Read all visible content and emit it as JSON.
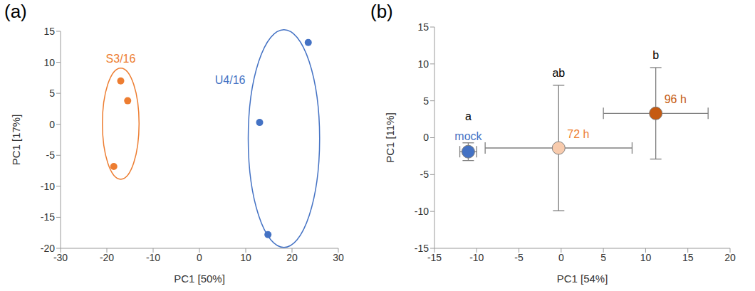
{
  "chart_data": [
    {
      "panel": "(a)",
      "type": "scatter",
      "x_label": "PC1 [50%]",
      "y_label": "PC1 [17%]",
      "xlim": [
        -30,
        30
      ],
      "xticks": [
        -30,
        -20,
        -10,
        0,
        10,
        20,
        30
      ],
      "ylim": [
        -20,
        15
      ],
      "yticks": [
        -20,
        -15,
        -10,
        -5,
        0,
        5,
        10,
        15
      ],
      "grid": false,
      "series": [
        {
          "name": "S3/16",
          "color": "#ed7d31",
          "marker": "circle",
          "x": [
            -17,
            -15.5,
            -18.5
          ],
          "values": [
            7,
            3.8,
            -6.8
          ]
        },
        {
          "name": "U4/16",
          "color": "#4472c4",
          "marker": "circle",
          "x": [
            23.5,
            13,
            14.8
          ],
          "values": [
            13.2,
            0.3,
            -17.8
          ]
        }
      ]
    },
    {
      "panel": "(b)",
      "type": "scatter",
      "x_label": "PC1 [54%]",
      "y_label": "PC1 [11%]",
      "xlim": [
        -15,
        20
      ],
      "xticks": [
        -15,
        -10,
        -5,
        0,
        5,
        10,
        15,
        20
      ],
      "ylim": [
        -15,
        15
      ],
      "yticks": [
        -15,
        -10,
        -5,
        0,
        5,
        10,
        15
      ],
      "grid": false,
      "series": [
        {
          "name": "mock",
          "color": "#4472c4",
          "marker": "circle",
          "letter": "a",
          "x": [
            -11
          ],
          "values": [
            -1.9
          ],
          "xerr": [
            1.0
          ],
          "yerr": [
            1.2
          ]
        },
        {
          "name": "72 h",
          "color": "#f8cbad",
          "marker": "circle",
          "letter": "ab",
          "x": [
            -0.3
          ],
          "values": [
            -1.4
          ],
          "xerr": [
            8.7
          ],
          "yerr": [
            8.5
          ]
        },
        {
          "name": "96 h",
          "color": "#c55a11",
          "marker": "circle",
          "letter": "b",
          "x": [
            11.2
          ],
          "values": [
            3.3
          ],
          "xerr": [
            6.2
          ],
          "yerr": [
            6.2
          ]
        }
      ]
    }
  ]
}
